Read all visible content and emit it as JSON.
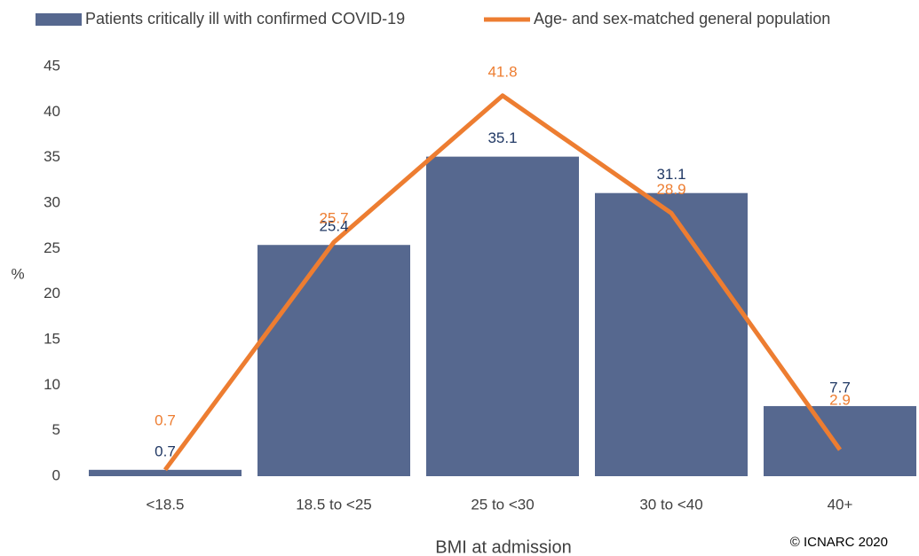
{
  "chart_data": {
    "type": "combo",
    "x_label": "BMI at admission",
    "y_label": "%",
    "copyright": "© ICNARC 2020",
    "categories": [
      "<18.5",
      "18.5 to <25",
      "25 to <30",
      "30 to <40",
      "40+"
    ],
    "series": [
      {
        "name": "Patients critically ill with confirmed COVID-19",
        "type": "bar",
        "color": "#56688f",
        "label_color": "#203864",
        "values": [
          0.7,
          25.4,
          35.1,
          31.1,
          7.7
        ]
      },
      {
        "name": "Age- and sex-matched general population",
        "type": "line",
        "color": "#ed7d31",
        "label_color": "#ed7d31",
        "values": [
          0.7,
          25.7,
          41.8,
          28.9,
          2.9
        ]
      }
    ],
    "ylim": [
      0,
      45
    ],
    "yticks": [
      0,
      5,
      10,
      15,
      20,
      25,
      30,
      35,
      40,
      45
    ],
    "grid": false
  }
}
